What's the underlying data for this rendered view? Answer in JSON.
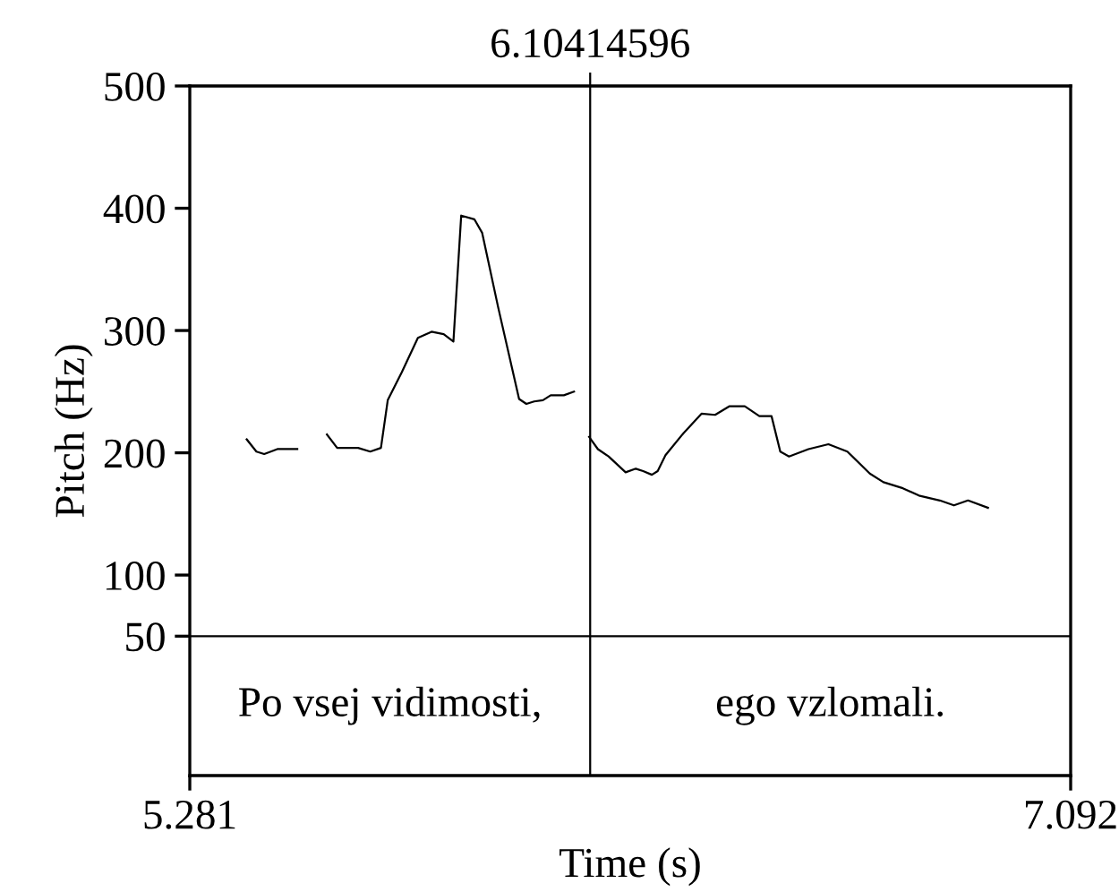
{
  "chart_data": {
    "type": "line",
    "xlabel": "Time (s)",
    "ylabel": "Pitch (Hz)",
    "xlim": [
      5.281,
      7.092
    ],
    "xticks": [
      5.281,
      7.092
    ],
    "ylim": [
      -64,
      500
    ],
    "yticks": [
      50,
      100,
      200,
      300,
      400,
      500
    ],
    "grid": false,
    "marker": "none",
    "line_style": "solid",
    "series": [
      {
        "color": "#000000",
        "x": [
          5.398,
          5.418,
          5.434,
          5.461,
          5.502,
          5.53,
          5.563,
          5.584,
          5.627,
          5.652,
          5.674,
          5.688,
          5.717,
          5.75,
          5.778,
          5.803,
          5.823,
          5.839,
          5.866,
          5.882,
          5.915,
          5.958,
          5.973,
          5.989,
          6.007,
          6.023,
          6.05,
          6.071,
          6.086,
          6.102,
          6.12,
          6.142,
          6.177,
          6.198,
          6.213,
          6.231,
          6.243,
          6.259,
          6.296,
          6.333,
          6.361,
          6.39,
          6.422,
          6.452,
          6.477,
          6.495,
          6.513,
          6.553,
          6.594,
          6.633,
          6.679,
          6.707,
          6.747,
          6.78,
          6.823,
          6.852,
          6.881,
          6.922
        ],
        "values": [
          211,
          201,
          199,
          203,
          203,
          null,
          215,
          204,
          204,
          201,
          204,
          243,
          266,
          294,
          299,
          297,
          291,
          394,
          391,
          380,
          319,
          244,
          240,
          242,
          243,
          247,
          247,
          250,
          null,
          213,
          203,
          197,
          184,
          187,
          185,
          182,
          185,
          198,
          216,
          232,
          231,
          238,
          238,
          230,
          230,
          201,
          197,
          203,
          207,
          201,
          183,
          176,
          171,
          165,
          161,
          157,
          161,
          155
        ]
      }
    ],
    "ref_lines": [
      {
        "axis": "x",
        "value": 6.10414596,
        "label": "6.10414596",
        "color": "#000000"
      },
      {
        "axis": "y",
        "value": 50,
        "color": "#000000"
      }
    ],
    "annotations": [
      "Po vsej vidimosti,",
      "ego vzlomali."
    ]
  }
}
